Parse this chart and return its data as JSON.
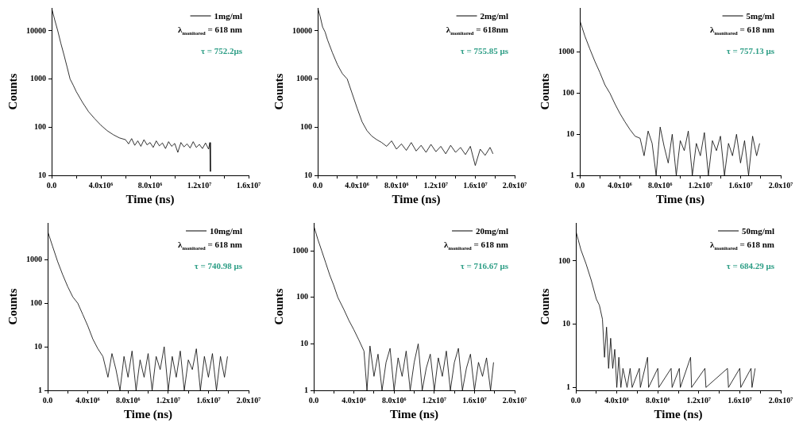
{
  "chart_data": [
    {
      "type": "line",
      "xlabel": "Time (ns)",
      "ylabel": "Counts",
      "log": "y",
      "legend": "top right",
      "marker": "none",
      "xlim": [
        0,
        16000000
      ],
      "xticks": [
        {
          "value": 0,
          "label": "0.0"
        },
        {
          "value": 2000000,
          "label": null
        },
        {
          "value": 4000000,
          "label": "4.0x10⁶"
        },
        {
          "value": 6000000,
          "label": null
        },
        {
          "value": 8000000,
          "label": "8.0x10⁶"
        },
        {
          "value": 10000000,
          "label": null
        },
        {
          "value": 12000000,
          "label": "1.2x10⁷"
        },
        {
          "value": 14000000,
          "label": null
        },
        {
          "value": 16000000,
          "label": "1.6x10⁷"
        }
      ],
      "ylim": [
        10,
        30000
      ],
      "yticks": [
        10,
        100,
        1000,
        10000
      ],
      "series": [
        {
          "name": "1mg/ml",
          "color": "#000000",
          "x": [
            0,
            250000,
            500000,
            750000,
            1000000,
            1250000,
            1500000,
            1750000,
            2000000,
            2500000,
            3000000,
            3500000,
            4000000,
            4500000,
            5000000,
            5500000,
            6000000,
            6250000,
            6500000,
            6750000,
            7000000,
            7250000,
            7500000,
            7750000,
            8000000,
            8250000,
            8500000,
            8750000,
            9000000,
            9250000,
            9500000,
            9750000,
            10000000,
            10250000,
            10500000,
            10750000,
            11000000,
            11250000,
            11500000,
            11750000,
            12000000,
            12250000,
            12500000,
            12750000,
            12850000,
            12900000
          ],
          "values": [
            30000,
            17000,
            10000,
            5500,
            3200,
            1800,
            1000,
            750,
            550,
            330,
            210,
            150,
            110,
            85,
            70,
            60,
            55,
            45,
            58,
            42,
            52,
            40,
            55,
            43,
            48,
            38,
            52,
            41,
            47,
            36,
            50,
            40,
            46,
            30,
            48,
            39,
            45,
            37,
            50,
            38,
            44,
            36,
            47,
            35,
            48,
            12
          ]
        }
      ],
      "annotations": [
        "λ$_{monitored}$ = 618 nm",
        "τ = 752.2μs"
      ]
    },
    {
      "type": "line",
      "xlabel": "Time (ns)",
      "ylabel": "Counts",
      "log": "y",
      "legend": "top right",
      "marker": "none",
      "xlim": [
        0,
        20000000
      ],
      "xticks": [
        {
          "value": 0,
          "label": "0.0"
        },
        {
          "value": 2000000,
          "label": null
        },
        {
          "value": 4000000,
          "label": "4.0x10⁶"
        },
        {
          "value": 6000000,
          "label": null
        },
        {
          "value": 8000000,
          "label": "8.0x10⁶"
        },
        {
          "value": 10000000,
          "label": null
        },
        {
          "value": 12000000,
          "label": "1.2x10⁷"
        },
        {
          "value": 14000000,
          "label": null
        },
        {
          "value": 16000000,
          "label": "1.6x10⁷"
        },
        {
          "value": 18000000,
          "label": null
        },
        {
          "value": 20000000,
          "label": "2.0x10⁷"
        }
      ],
      "ylim": [
        10,
        30000
      ],
      "yticks": [
        10,
        100,
        1000,
        10000
      ],
      "series": [
        {
          "name": "2mg/ml",
          "color": "#000000",
          "x": [
            0,
            250000,
            500000,
            750000,
            1000000,
            1500000,
            2000000,
            2500000,
            3000000,
            3500000,
            4000000,
            4500000,
            5000000,
            5500000,
            6000000,
            6500000,
            7000000,
            7500000,
            8000000,
            8500000,
            9000000,
            9500000,
            10000000,
            10500000,
            11000000,
            11500000,
            12000000,
            12500000,
            13000000,
            13500000,
            14000000,
            14500000,
            15000000,
            15500000,
            16000000,
            16500000,
            17000000,
            17500000,
            17800000
          ],
          "values": [
            30000,
            20000,
            12000,
            9500,
            6500,
            3500,
            2000,
            1300,
            1000,
            500,
            250,
            130,
            85,
            65,
            55,
            48,
            40,
            52,
            35,
            45,
            33,
            48,
            32,
            42,
            30,
            44,
            31,
            40,
            28,
            42,
            30,
            38,
            27,
            40,
            16,
            35,
            26,
            38,
            28
          ]
        }
      ],
      "annotations": [
        "λ$_{monitored}$ = 618nm",
        "τ = 755.85 μs"
      ]
    },
    {
      "type": "line",
      "xlabel": "Time (ns)",
      "ylabel": "Counts",
      "log": "y",
      "legend": "top right",
      "marker": "none",
      "xlim": [
        0,
        20000000
      ],
      "xticks": [
        {
          "value": 0,
          "label": "0.0"
        },
        {
          "value": 2000000,
          "label": null
        },
        {
          "value": 4000000,
          "label": "4.0x10⁶"
        },
        {
          "value": 6000000,
          "label": null
        },
        {
          "value": 8000000,
          "label": "8.0x10⁶"
        },
        {
          "value": 10000000,
          "label": null
        },
        {
          "value": 12000000,
          "label": "1.2x10⁷"
        },
        {
          "value": 14000000,
          "label": null
        },
        {
          "value": 16000000,
          "label": "1.6x10⁷"
        },
        {
          "value": 18000000,
          "label": null
        },
        {
          "value": 20000000,
          "label": "2.0x10⁷"
        }
      ],
      "ylim": [
        1,
        12000
      ],
      "yticks": [
        1,
        10,
        100,
        1000
      ],
      "series": [
        {
          "name": "5mg/ml",
          "color": "#000000",
          "x": [
            0,
            500000,
            1000000,
            1500000,
            2000000,
            2500000,
            3000000,
            3500000,
            4000000,
            4500000,
            5000000,
            5500000,
            6000000,
            6400000,
            6800000,
            7200000,
            7600000,
            8000000,
            8400000,
            8800000,
            9200000,
            9600000,
            10000000,
            10400000,
            10800000,
            11200000,
            11600000,
            12000000,
            12400000,
            12800000,
            13200000,
            13600000,
            14000000,
            14400000,
            14800000,
            15200000,
            15600000,
            16000000,
            16400000,
            16800000,
            17200000,
            17600000,
            17900000
          ],
          "values": [
            6000,
            2500,
            1200,
            600,
            320,
            160,
            100,
            55,
            32,
            20,
            13,
            9,
            8,
            3,
            12,
            6,
            1,
            15,
            5,
            2,
            10,
            1,
            7,
            4,
            12,
            1,
            6,
            3,
            11,
            1,
            7,
            4,
            9,
            1,
            6,
            3,
            10,
            2,
            7,
            1,
            9,
            3,
            6
          ]
        }
      ],
      "annotations": [
        "λ$_{monitored}$ = 618 nm",
        "τ = 757.13 μs"
      ]
    },
    {
      "type": "line",
      "xlabel": "Time (ns)",
      "ylabel": "Counts",
      "log": "y",
      "legend": "top right",
      "marker": "none",
      "xlim": [
        0,
        20000000
      ],
      "xticks": [
        {
          "value": 0,
          "label": "0.0"
        },
        {
          "value": 2000000,
          "label": null
        },
        {
          "value": 4000000,
          "label": "4.0x10⁶"
        },
        {
          "value": 6000000,
          "label": null
        },
        {
          "value": 8000000,
          "label": "8.0x10⁶"
        },
        {
          "value": 10000000,
          "label": null
        },
        {
          "value": 12000000,
          "label": "1.2x10⁷"
        },
        {
          "value": 14000000,
          "label": null
        },
        {
          "value": 16000000,
          "label": "1.6x10⁷"
        },
        {
          "value": 18000000,
          "label": null
        },
        {
          "value": 20000000,
          "label": "2.0x10⁷"
        }
      ],
      "ylim": [
        1,
        7000
      ],
      "yticks": [
        1,
        10,
        100,
        1000
      ],
      "series": [
        {
          "name": "10mg/ml",
          "color": "#000000",
          "x": [
            0,
            500000,
            1000000,
            1500000,
            2000000,
            2500000,
            3000000,
            3500000,
            4000000,
            4500000,
            5000000,
            5500000,
            6000000,
            6400000,
            6800000,
            7200000,
            7600000,
            8000000,
            8400000,
            8800000,
            9200000,
            9600000,
            10000000,
            10400000,
            10800000,
            11200000,
            11600000,
            12000000,
            12400000,
            12800000,
            13200000,
            13600000,
            14000000,
            14400000,
            14800000,
            15200000,
            15600000,
            16000000,
            16400000,
            16800000,
            17200000,
            17600000,
            17900000
          ],
          "values": [
            4500,
            2000,
            900,
            450,
            240,
            140,
            100,
            55,
            30,
            15,
            9,
            6,
            2,
            7,
            3,
            1,
            6,
            2,
            8,
            1,
            5,
            2,
            7,
            1,
            6,
            3,
            10,
            1,
            6,
            2,
            8,
            1,
            5,
            3,
            9,
            1,
            6,
            2,
            7,
            1,
            6,
            2,
            6
          ]
        }
      ],
      "annotations": [
        "λ$_{monitored}$ = 618 nm",
        "τ = 740.98 μs"
      ]
    },
    {
      "type": "line",
      "xlabel": "Time (ns)",
      "ylabel": "Counts",
      "log": "y",
      "legend": "top right",
      "marker": "none",
      "xlim": [
        0,
        20000000
      ],
      "xticks": [
        {
          "value": 0,
          "label": "0.0"
        },
        {
          "value": 2000000,
          "label": null
        },
        {
          "value": 4000000,
          "label": "4.0x10⁶"
        },
        {
          "value": 6000000,
          "label": null
        },
        {
          "value": 8000000,
          "label": "8.0x10⁶"
        },
        {
          "value": 10000000,
          "label": null
        },
        {
          "value": 12000000,
          "label": "1.2x10⁷"
        },
        {
          "value": 14000000,
          "label": null
        },
        {
          "value": 16000000,
          "label": "1.6x10⁷"
        },
        {
          "value": 18000000,
          "label": null
        },
        {
          "value": 20000000,
          "label": "2.0x10⁷"
        }
      ],
      "ylim": [
        1,
        4000
      ],
      "yticks": [
        1,
        10,
        100,
        1000
      ],
      "series": [
        {
          "name": "20mg/ml",
          "color": "#000000",
          "x": [
            0,
            400000,
            800000,
            1200000,
            1600000,
            2000000,
            2400000,
            3000000,
            3500000,
            4000000,
            4500000,
            5000000,
            5300000,
            5600000,
            6000000,
            6400000,
            6800000,
            7200000,
            7600000,
            8000000,
            8400000,
            8800000,
            9200000,
            9600000,
            10000000,
            10400000,
            10800000,
            11200000,
            11600000,
            12000000,
            12400000,
            12800000,
            13200000,
            13600000,
            14000000,
            14400000,
            14800000,
            15200000,
            15600000,
            16000000,
            16400000,
            16800000,
            17200000,
            17600000,
            17900000
          ],
          "values": [
            3500,
            1800,
            1000,
            550,
            300,
            180,
            100,
            55,
            32,
            20,
            12,
            7,
            1,
            9,
            2,
            6,
            1,
            4,
            8,
            1,
            5,
            2,
            7,
            1,
            4,
            10,
            1,
            3,
            6,
            1,
            5,
            2,
            7,
            1,
            4,
            8,
            1,
            3,
            6,
            1,
            4,
            2,
            5,
            1,
            4
          ]
        }
      ],
      "annotations": [
        "λ$_{monitored}$ = 618 nm",
        "τ = 716.67 μs"
      ]
    },
    {
      "type": "line",
      "xlabel": "Time (ns)",
      "ylabel": "Counts",
      "log": "y",
      "legend": "top right",
      "marker": "none",
      "xlim": [
        0,
        20000000
      ],
      "xticks": [
        {
          "value": 0,
          "label": "0.0"
        },
        {
          "value": 2000000,
          "label": null
        },
        {
          "value": 4000000,
          "label": "4.0x10⁶"
        },
        {
          "value": 6000000,
          "label": null
        },
        {
          "value": 8000000,
          "label": "8.0x10⁶"
        },
        {
          "value": 10000000,
          "label": null
        },
        {
          "value": 12000000,
          "label": "1.2x10⁷"
        },
        {
          "value": 14000000,
          "label": null
        },
        {
          "value": 16000000,
          "label": "1.6x10⁷"
        },
        {
          "value": 18000000,
          "label": null
        },
        {
          "value": 20000000,
          "label": "2.0x10⁷"
        }
      ],
      "ylim": [
        0.9,
        400
      ],
      "yticks": [
        1,
        10,
        100
      ],
      "series": [
        {
          "name": "50mg/ml",
          "color": "#000000",
          "x": [
            0,
            500000,
            1000000,
            1500000,
            2000000,
            2300000,
            2600000,
            2800000,
            3000000,
            3200000,
            3400000,
            3600000,
            3800000,
            4000000,
            4200000,
            4400000,
            4600000,
            5000000,
            5300000,
            5500000,
            6200000,
            6300000,
            7000000,
            7100000,
            8000000,
            8100000,
            9300000,
            9400000,
            10100000,
            10200000,
            11200000,
            11300000,
            12600000,
            12700000,
            14800000,
            14900000,
            16000000,
            16100000,
            17100000,
            17200000,
            17500000
          ],
          "values": [
            300,
            150,
            90,
            50,
            25,
            20,
            12,
            3,
            9,
            2,
            6,
            2,
            4,
            1,
            3,
            1,
            2,
            1,
            2,
            1,
            2,
            1,
            3,
            1,
            2,
            1,
            2,
            1,
            2,
            1,
            3,
            1,
            2,
            1,
            2,
            1,
            2,
            1,
            2,
            1,
            2
          ]
        }
      ],
      "annotations": [
        "λ$_{monitored}$ = 618 nm",
        "τ = 684.29 μs"
      ]
    }
  ]
}
